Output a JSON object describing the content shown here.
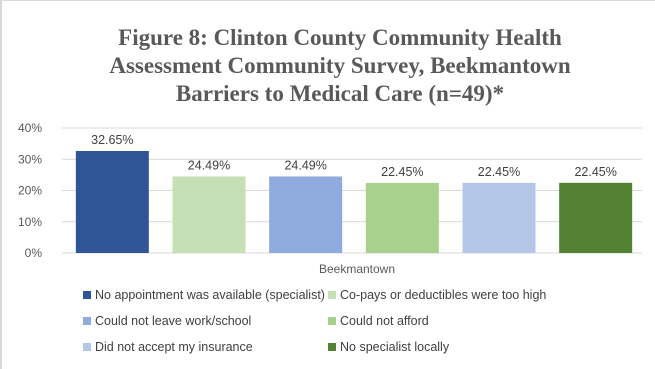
{
  "chart_data": {
    "type": "bar",
    "title_lines": [
      "Figure 8: Clinton County Community Health",
      "Assessment Community Survey, Beekmantown",
      "Barriers to Medical Care (n=49)*"
    ],
    "categories": [
      "Beekmantown"
    ],
    "xlabel": "",
    "ylabel": "",
    "ylim": [
      0,
      40
    ],
    "y_ticks": [
      "0%",
      "10%",
      "20%",
      "30%",
      "40%"
    ],
    "grid": true,
    "legend_position": "bottom",
    "series": [
      {
        "name": "No appointment was available (specialist)",
        "values": [
          32.65
        ],
        "label": "32.65%",
        "color": "#2f5597"
      },
      {
        "name": "Co-pays or deductibles were too high",
        "values": [
          24.49
        ],
        "label": "24.49%",
        "color": "#c5e0b4"
      },
      {
        "name": "Could not leave work/school",
        "values": [
          24.49
        ],
        "label": "24.49%",
        "color": "#8faadc"
      },
      {
        "name": "Could not afford",
        "values": [
          22.45
        ],
        "label": "22.45%",
        "color": "#a9d18e"
      },
      {
        "name": "Did not accept my insurance",
        "values": [
          22.45
        ],
        "label": "22.45%",
        "color": "#b4c7e7"
      },
      {
        "name": "No specialist locally",
        "values": [
          22.45
        ],
        "label": "22.45%",
        "color": "#548235"
      }
    ]
  }
}
